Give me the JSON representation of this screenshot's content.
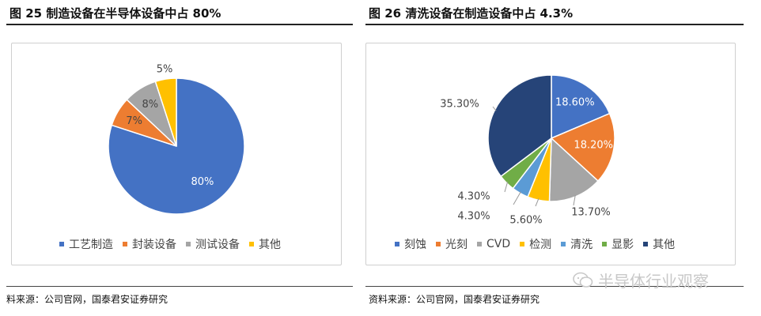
{
  "chart_data": [
    {
      "type": "pie",
      "title": "图 25 制造设备在半导体设备中占 80%",
      "categories": [
        "工艺制造",
        "封装设备",
        "测试设备",
        "其他"
      ],
      "values": [
        80,
        7,
        8,
        5
      ],
      "data_labels": [
        "80%",
        "7%",
        "8%",
        "5%"
      ],
      "colors": [
        "#4472C4",
        "#ED7D31",
        "#A5A5A5",
        "#FFC000"
      ],
      "legend_position": "bottom"
    },
    {
      "type": "pie",
      "title": "图 26 清洗设备在制造设备中占 4.3%",
      "categories": [
        "刻蚀",
        "光刻",
        "CVD",
        "检测",
        "清洗",
        "显影",
        "其他"
      ],
      "values": [
        18.6,
        18.2,
        13.7,
        5.6,
        4.3,
        4.3,
        35.3
      ],
      "data_labels": [
        "18.60%",
        "18.20%",
        "13.70%",
        "5.60%",
        "4.30%",
        "4.30%",
        "35.30%"
      ],
      "colors": [
        "#4472C4",
        "#ED7D31",
        "#A5A5A5",
        "#FFC000",
        "#5B9BD5",
        "#70AD47",
        "#264478"
      ],
      "legend_position": "bottom"
    }
  ],
  "sources": {
    "left": "料来源：公司官网，国泰君安证券研究",
    "right": "资料来源：公司官网，国泰君安证券研究"
  },
  "watermark": {
    "text": "半导体行业观察",
    "icon": "wechat-icon"
  }
}
